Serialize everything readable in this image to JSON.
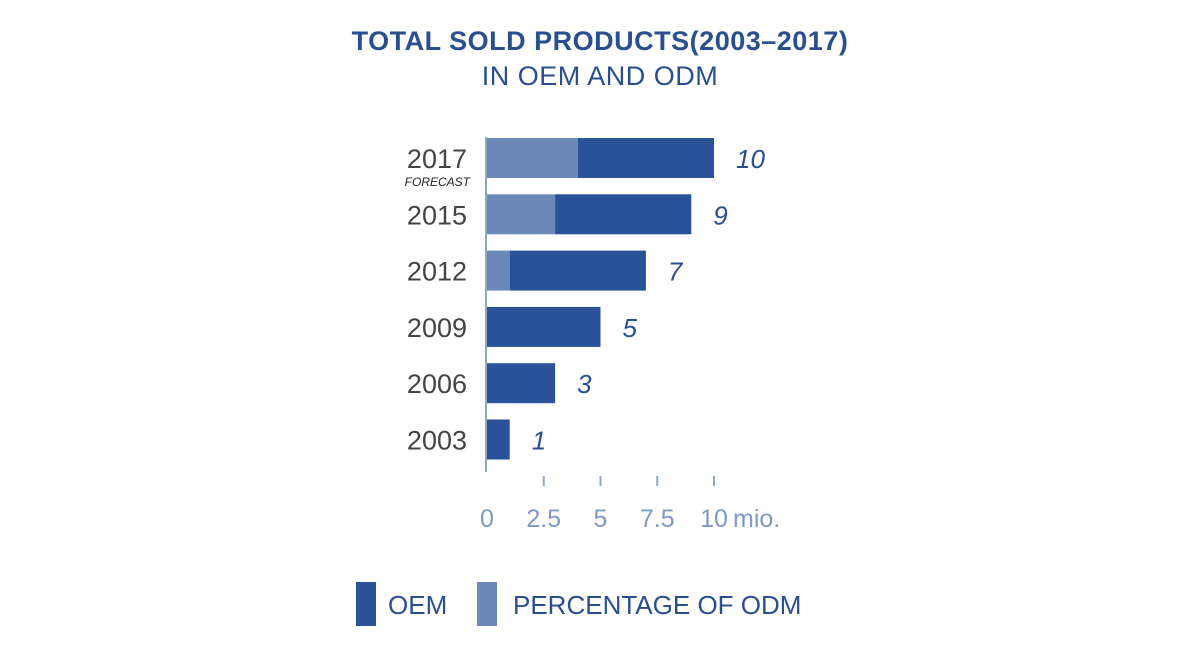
{
  "chart_data": {
    "type": "bar",
    "orientation": "horizontal",
    "stacked": true,
    "title": "TOTAL SOLD PRODUCTS(2003–2017)",
    "subtitle": "IN OEM AND ODM",
    "categories": [
      "2017",
      "2015",
      "2012",
      "2009",
      "2006",
      "2003"
    ],
    "category_notes": [
      "FORECAST",
      "",
      "",
      "",
      "",
      ""
    ],
    "series": [
      {
        "name": "PERCENTAGE OF ODM",
        "values": [
          4,
          3,
          1,
          0,
          0,
          0
        ],
        "color": "#6a89b9"
      },
      {
        "name": "OEM",
        "values": [
          6,
          6,
          6,
          5,
          3,
          1
        ],
        "color": "#2a5298"
      }
    ],
    "totals": [
      10,
      9,
      7,
      5,
      3,
      1
    ],
    "total_labels": [
      "10",
      "9",
      "7",
      "5",
      "3",
      "1"
    ],
    "xlim": [
      0,
      10
    ],
    "xticks": [
      0,
      2.5,
      5,
      7.5,
      10
    ],
    "xtick_labels": [
      "0",
      "2.5",
      "5",
      "7.5",
      "10"
    ],
    "xunit": "mio.",
    "grid": false,
    "legend_position": "bottom"
  },
  "legend": [
    {
      "label": "OEM",
      "color": "#2a5298"
    },
    {
      "label": "PERCENTAGE OF ODM",
      "color": "#6a89b9"
    }
  ],
  "colors": {
    "title": "#2a4f8f",
    "axis": "#8fa6c9",
    "tick_text": "#7d99c4",
    "category_text": "#444444",
    "value_text": "#2a4f8f"
  }
}
